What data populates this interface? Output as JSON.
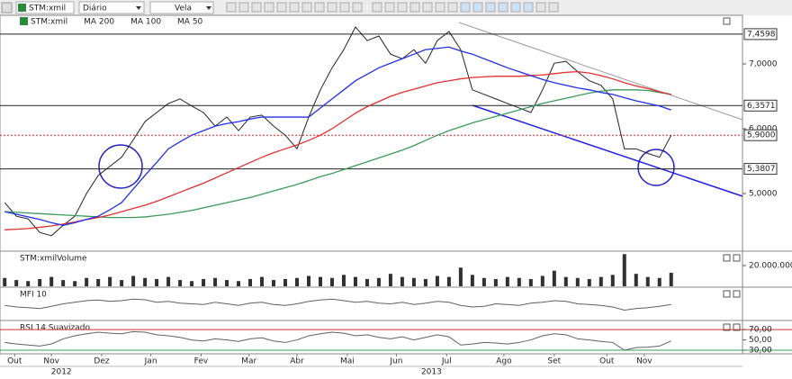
{
  "toolbar": {
    "symbol": "STM:xmil",
    "interval": "Diário",
    "style": "Vela"
  },
  "chart_data": [
    {
      "type": "line",
      "ylim": [
        4.125,
        7.75
      ],
      "yticks": [
        {
          "value": 7,
          "label": "7,0000"
        },
        {
          "value": 6,
          "label": "6,0000"
        },
        {
          "value": 5,
          "label": "5,0000"
        }
      ],
      "levels": [
        {
          "value": 7.4598,
          "label": "7,4598"
        },
        {
          "value": 6.3571,
          "label": "6,3571"
        },
        {
          "value": 5.3807,
          "label": "5,3807"
        }
      ],
      "last_price": {
        "value": 5.9,
        "label": "5,9000",
        "color": "#e02020"
      },
      "xlim": [
        -0.4,
        63.1
      ],
      "series": [
        {
          "name": "STM:xmil",
          "color": "#202020",
          "values": [
            4.86,
            4.65,
            4.61,
            4.4,
            4.35,
            4.51,
            4.65,
            5.0,
            5.28,
            5.42,
            5.56,
            5.83,
            6.11,
            6.25,
            6.39,
            6.46,
            6.35,
            6.25,
            6.04,
            6.18,
            5.97,
            6.18,
            6.21,
            6.04,
            5.9,
            5.69,
            6.18,
            6.6,
            6.94,
            7.22,
            7.57,
            7.36,
            7.43,
            7.15,
            7.08,
            7.22,
            7.01,
            7.36,
            7.5,
            7.22,
            6.6,
            6.53,
            6.46,
            6.39,
            6.32,
            6.25,
            6.6,
            7.01,
            7.04,
            6.88,
            6.74,
            6.67,
            6.46,
            5.69,
            5.69,
            5.62,
            5.56,
            5.9
          ]
        },
        {
          "name": "MA 200",
          "color": "#3a9a5a",
          "values": [
            4.72,
            4.71,
            4.7,
            4.69,
            4.68,
            4.67,
            4.66,
            4.65,
            4.64,
            4.63,
            4.63,
            4.63,
            4.64,
            4.66,
            4.68,
            4.71,
            4.74,
            4.78,
            4.82,
            4.86,
            4.9,
            4.94,
            4.99,
            5.04,
            5.09,
            5.14,
            5.2,
            5.26,
            5.31,
            5.37,
            5.43,
            5.49,
            5.55,
            5.61,
            5.67,
            5.74,
            5.82,
            5.9,
            5.97,
            6.03,
            6.09,
            6.14,
            6.19,
            6.24,
            6.29,
            6.34,
            6.39,
            6.43,
            6.47,
            6.51,
            6.55,
            6.58,
            6.6,
            6.6,
            6.6,
            6.59,
            6.56,
            6.53
          ]
        },
        {
          "name": "MA 100",
          "color": "#e03030",
          "values": [
            4.44,
            4.45,
            4.46,
            4.48,
            4.5,
            4.53,
            4.56,
            4.6,
            4.63,
            4.67,
            4.72,
            4.77,
            4.82,
            4.88,
            4.95,
            5.02,
            5.09,
            5.16,
            5.24,
            5.32,
            5.4,
            5.48,
            5.56,
            5.63,
            5.69,
            5.75,
            5.82,
            5.9,
            6.0,
            6.12,
            6.24,
            6.34,
            6.42,
            6.5,
            6.56,
            6.61,
            6.66,
            6.71,
            6.74,
            6.77,
            6.79,
            6.8,
            6.81,
            6.81,
            6.81,
            6.82,
            6.83,
            6.85,
            6.87,
            6.88,
            6.86,
            6.82,
            6.77,
            6.71,
            6.66,
            6.62,
            6.57,
            6.53
          ]
        },
        {
          "name": "MA 50",
          "color": "#2030e0",
          "values": [
            4.72,
            4.68,
            4.64,
            4.6,
            4.55,
            4.51,
            4.55,
            4.6,
            4.65,
            4.75,
            4.86,
            5.07,
            5.28,
            5.48,
            5.69,
            5.8,
            5.9,
            5.97,
            6.04,
            6.08,
            6.11,
            6.15,
            6.18,
            6.18,
            6.18,
            6.18,
            6.18,
            6.32,
            6.46,
            6.6,
            6.74,
            6.84,
            6.94,
            7.01,
            7.08,
            7.15,
            7.22,
            7.24,
            7.26,
            7.2,
            7.15,
            7.08,
            7.01,
            6.94,
            6.88,
            6.82,
            6.76,
            6.71,
            6.67,
            6.63,
            6.6,
            6.56,
            6.53,
            6.48,
            6.43,
            6.39,
            6.35,
            6.29
          ]
        }
      ]
    },
    {
      "type": "bar",
      "title": "STM:xmilVolume",
      "color": "#303030",
      "ylim": [
        0,
        33000000
      ],
      "xlim": [
        -0.4,
        63.1
      ],
      "yticks": [
        {
          "value": 20000000,
          "label": "20.000.000"
        }
      ],
      "values": [
        8000000,
        6000000,
        5000000,
        7000000,
        9000000,
        6000000,
        5000000,
        8000000,
        7000000,
        9000000,
        6000000,
        10000000,
        8000000,
        7000000,
        9000000,
        6000000,
        5000000,
        7000000,
        8000000,
        6000000,
        5000000,
        7000000,
        9000000,
        6000000,
        7000000,
        8000000,
        10000000,
        9000000,
        8000000,
        11000000,
        9000000,
        7000000,
        8000000,
        12000000,
        9000000,
        8000000,
        7000000,
        10000000,
        9000000,
        18000000,
        11000000,
        8000000,
        7000000,
        9000000,
        8000000,
        7000000,
        10000000,
        15000000,
        9000000,
        8000000,
        7000000,
        9000000,
        11000000,
        31000000,
        12000000,
        9000000,
        8000000,
        13000000
      ]
    },
    {
      "type": "line",
      "title": "MFI 10",
      "color": "#606060",
      "ylim": [
        0,
        100
      ],
      "xlim": [
        -0.4,
        63.1
      ],
      "values": [
        45,
        40,
        38,
        35,
        42,
        50,
        55,
        60,
        62,
        58,
        60,
        65,
        63,
        55,
        58,
        52,
        50,
        48,
        55,
        50,
        45,
        52,
        55,
        48,
        45,
        50,
        58,
        62,
        65,
        60,
        55,
        58,
        52,
        50,
        55,
        48,
        52,
        58,
        55,
        45,
        40,
        42,
        50,
        48,
        45,
        52,
        55,
        60,
        58,
        50,
        48,
        45,
        40,
        30,
        35,
        38,
        42,
        48
      ]
    },
    {
      "type": "line",
      "title": "RSI 14 Suavizado",
      "color": "#606060",
      "ylim": [
        23,
        86
      ],
      "xlim": [
        -0.4,
        63.1
      ],
      "yticks": [
        {
          "value": 70,
          "label": "70,00"
        },
        {
          "value": 50,
          "label": "50,00"
        },
        {
          "value": 30,
          "label": "30,00"
        }
      ],
      "bands": [
        {
          "value": 70,
          "color": "#d03030"
        },
        {
          "value": 30,
          "color": "#30a050"
        }
      ],
      "values": [
        45,
        42,
        40,
        38,
        42,
        52,
        58,
        62,
        65,
        63,
        62,
        66,
        65,
        60,
        58,
        55,
        50,
        48,
        52,
        50,
        47,
        52,
        54,
        48,
        45,
        50,
        58,
        62,
        65,
        63,
        58,
        60,
        55,
        52,
        56,
        50,
        55,
        60,
        56,
        40,
        42,
        45,
        44,
        42,
        45,
        50,
        58,
        62,
        60,
        52,
        50,
        47,
        45,
        30,
        35,
        36,
        38,
        48
      ],
      "xticks": [
        {
          "value": 0.85,
          "label": "Out"
        },
        {
          "value": 4,
          "label": "Nov"
        },
        {
          "value": 8.3,
          "label": "Dez"
        },
        {
          "value": 12.5,
          "label": "Jan"
        },
        {
          "value": 16.8,
          "label": "Fev"
        },
        {
          "value": 20.9,
          "label": "Mar"
        },
        {
          "value": 25,
          "label": "Abr"
        },
        {
          "value": 29.3,
          "label": "Mai"
        },
        {
          "value": 33.5,
          "label": "Jun"
        },
        {
          "value": 37.8,
          "label": "Jul"
        },
        {
          "value": 42.7,
          "label": "Ago"
        },
        {
          "value": 47,
          "label": "Set"
        },
        {
          "value": 51.5,
          "label": "Out"
        },
        {
          "value": 54.7,
          "label": "Nov"
        }
      ],
      "years": [
        {
          "value": 4.85,
          "label": "2012"
        },
        {
          "value": 36.5,
          "label": "2013"
        }
      ]
    }
  ]
}
